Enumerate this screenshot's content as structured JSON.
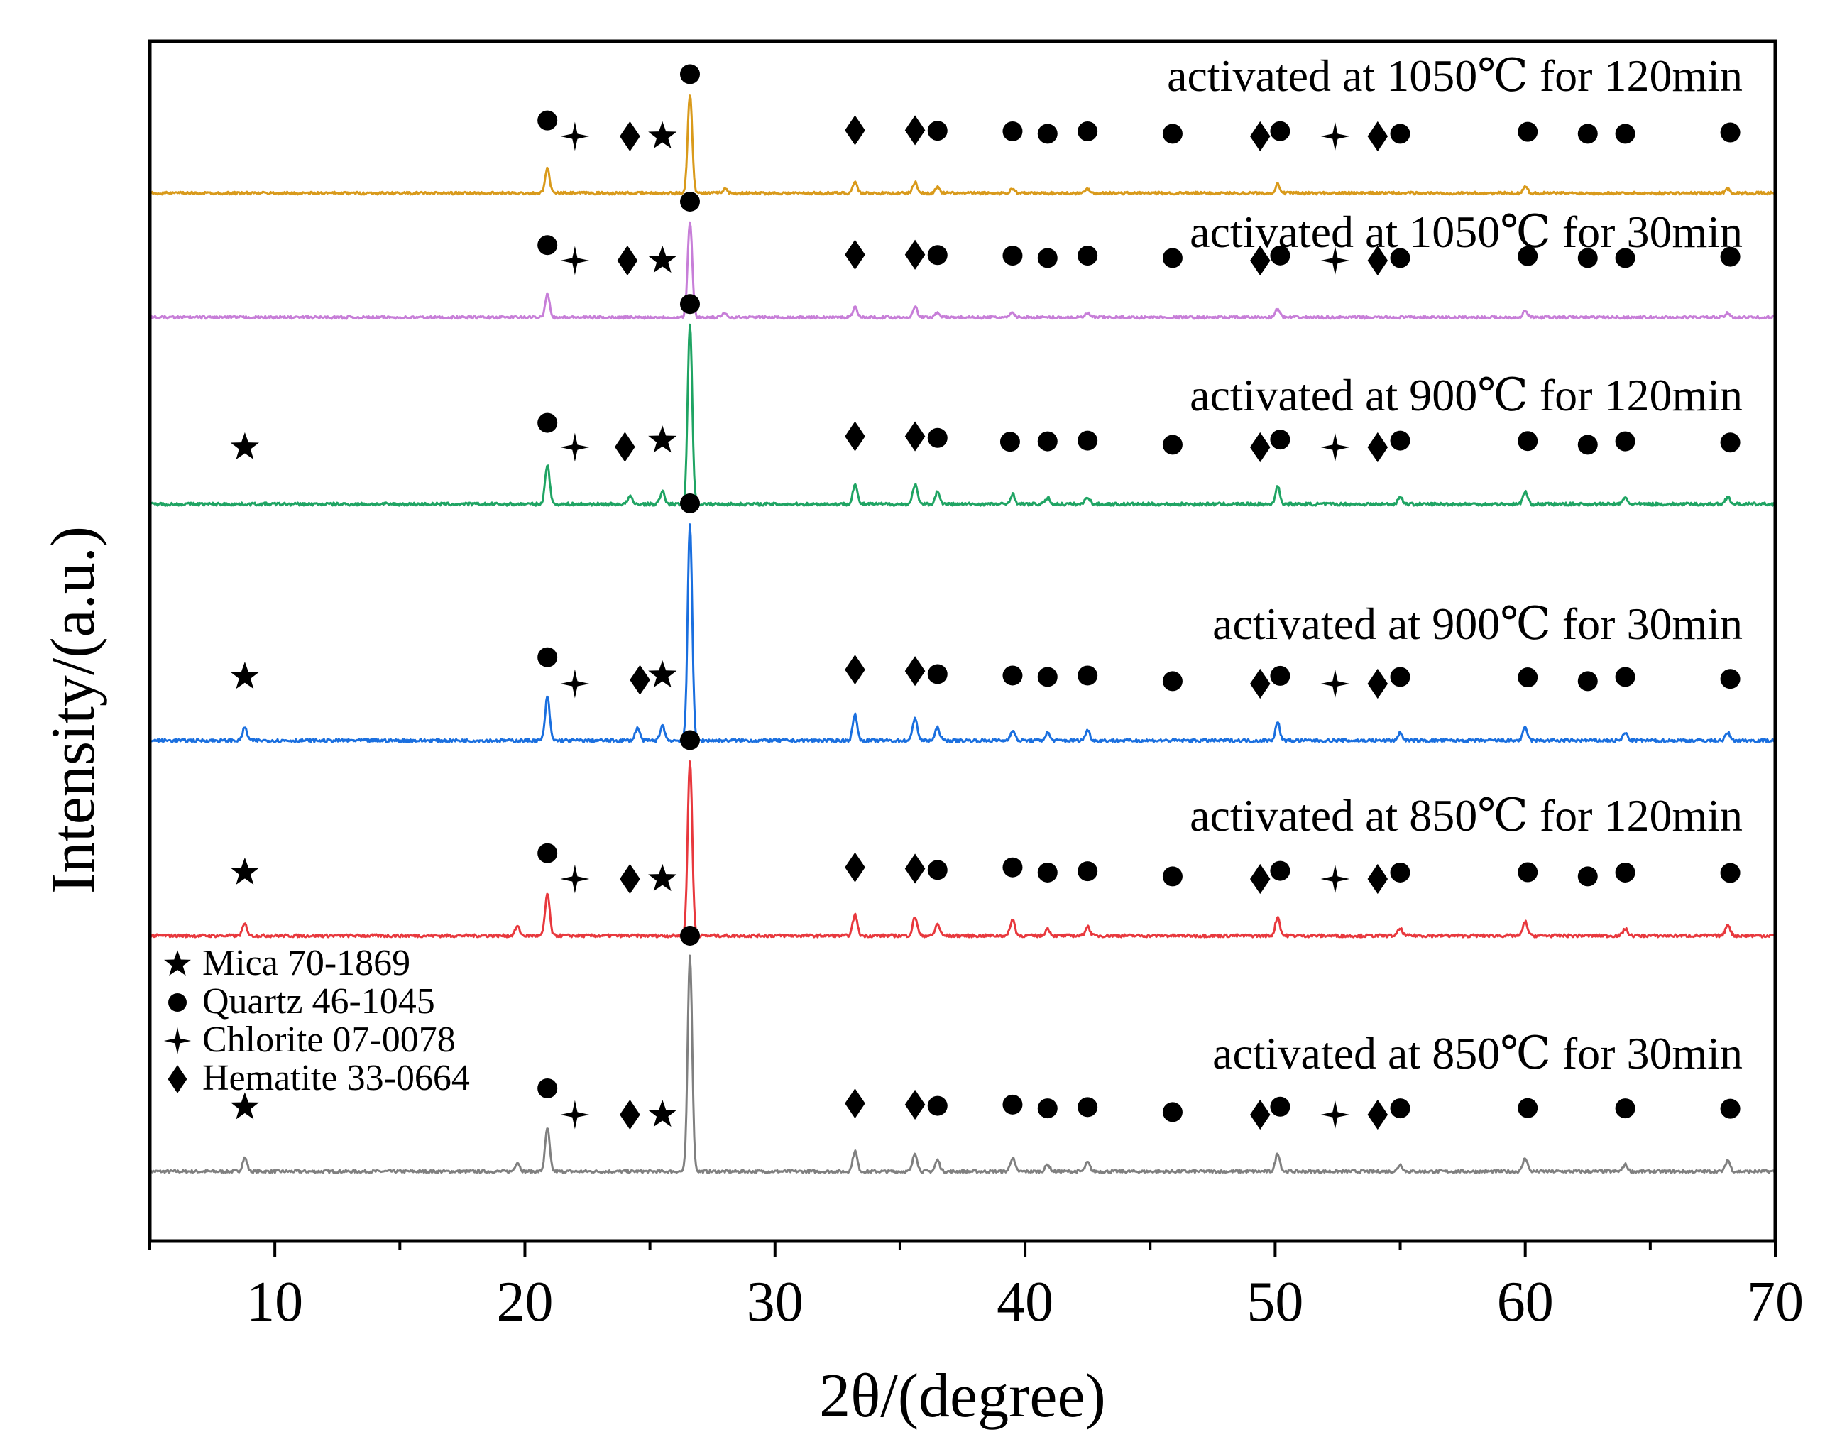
{
  "chart_data": {
    "type": "line",
    "xlabel": "2θ/(degree)",
    "ylabel": "Intensity/(a.u.)",
    "xlim": [
      5,
      70
    ],
    "x_ticks": [
      10,
      20,
      30,
      40,
      50,
      60,
      70
    ],
    "grid": false,
    "legend_position": "left",
    "legend": [
      {
        "symbol": "star",
        "label": "Mica 70-1869"
      },
      {
        "symbol": "circle",
        "label": "Quartz 46-1045"
      },
      {
        "symbol": "cross-star",
        "label": "Chlorite 07-0078"
      },
      {
        "symbol": "diamond",
        "label": "Hematite 33-0664"
      }
    ],
    "series": [
      {
        "name": "activated at 850℃ for 30min",
        "color": "#808080",
        "peaks": [
          [
            8.8,
            0.12
          ],
          [
            19.7,
            0.08
          ],
          [
            20.9,
            0.38
          ],
          [
            26.6,
            1.9
          ],
          [
            33.2,
            0.18
          ],
          [
            35.6,
            0.16
          ],
          [
            36.5,
            0.1
          ],
          [
            39.5,
            0.12
          ],
          [
            40.9,
            0.06
          ],
          [
            42.5,
            0.08
          ],
          [
            50.1,
            0.16
          ],
          [
            55.0,
            0.06
          ],
          [
            60.0,
            0.12
          ],
          [
            64.0,
            0.06
          ],
          [
            68.1,
            0.1
          ]
        ],
        "markers": [
          {
            "symbol": "star",
            "x": 8.8
          },
          {
            "symbol": "circle",
            "x": 20.9
          },
          {
            "symbol": "cross-star",
            "x": 22.0
          },
          {
            "symbol": "diamond",
            "x": 24.2
          },
          {
            "symbol": "star",
            "x": 25.5
          },
          {
            "symbol": "circle",
            "x": 26.6
          },
          {
            "symbol": "diamond",
            "x": 33.2
          },
          {
            "symbol": "diamond",
            "x": 35.6
          },
          {
            "symbol": "circle",
            "x": 36.5
          },
          {
            "symbol": "circle",
            "x": 39.5
          },
          {
            "symbol": "circle",
            "x": 40.9
          },
          {
            "symbol": "circle",
            "x": 42.5
          },
          {
            "symbol": "circle",
            "x": 45.9
          },
          {
            "symbol": "diamond",
            "x": 49.4
          },
          {
            "symbol": "circle",
            "x": 50.2
          },
          {
            "symbol": "cross-star",
            "x": 52.4
          },
          {
            "symbol": "diamond",
            "x": 54.1
          },
          {
            "symbol": "circle",
            "x": 55.0
          },
          {
            "symbol": "circle",
            "x": 60.1
          },
          {
            "symbol": "circle",
            "x": 64.0
          },
          {
            "symbol": "circle",
            "x": 68.2
          }
        ]
      },
      {
        "name": "activated at  850℃ for 120min",
        "color": "#e8383d",
        "peaks": [
          [
            8.8,
            0.1
          ],
          [
            19.7,
            0.08
          ],
          [
            20.9,
            0.36
          ],
          [
            26.6,
            1.5
          ],
          [
            33.2,
            0.18
          ],
          [
            35.6,
            0.16
          ],
          [
            36.5,
            0.1
          ],
          [
            39.5,
            0.14
          ],
          [
            40.9,
            0.06
          ],
          [
            42.5,
            0.08
          ],
          [
            50.1,
            0.16
          ],
          [
            55.0,
            0.06
          ],
          [
            60.0,
            0.12
          ],
          [
            64.0,
            0.06
          ],
          [
            68.1,
            0.1
          ]
        ],
        "markers": [
          {
            "symbol": "star",
            "x": 8.8
          },
          {
            "symbol": "circle",
            "x": 20.9
          },
          {
            "symbol": "cross-star",
            "x": 22.0
          },
          {
            "symbol": "diamond",
            "x": 24.2
          },
          {
            "symbol": "star",
            "x": 25.5
          },
          {
            "symbol": "circle",
            "x": 26.6
          },
          {
            "symbol": "diamond",
            "x": 33.2
          },
          {
            "symbol": "diamond",
            "x": 35.6
          },
          {
            "symbol": "circle",
            "x": 36.5
          },
          {
            "symbol": "circle",
            "x": 39.5
          },
          {
            "symbol": "circle",
            "x": 40.9
          },
          {
            "symbol": "circle",
            "x": 42.5
          },
          {
            "symbol": "circle",
            "x": 45.9
          },
          {
            "symbol": "diamond",
            "x": 49.4
          },
          {
            "symbol": "circle",
            "x": 50.2
          },
          {
            "symbol": "cross-star",
            "x": 52.4
          },
          {
            "symbol": "diamond",
            "x": 54.1
          },
          {
            "symbol": "circle",
            "x": 55.0
          },
          {
            "symbol": "circle",
            "x": 60.1
          },
          {
            "symbol": "circle",
            "x": 62.5
          },
          {
            "symbol": "circle",
            "x": 64.0
          },
          {
            "symbol": "circle",
            "x": 68.2
          }
        ]
      },
      {
        "name": "activated at  900℃ for 30min",
        "color": "#1a6fdf",
        "peaks": [
          [
            8.8,
            0.1
          ],
          [
            20.9,
            0.34
          ],
          [
            24.5,
            0.1
          ],
          [
            25.5,
            0.12
          ],
          [
            26.6,
            1.7
          ],
          [
            33.2,
            0.2
          ],
          [
            35.6,
            0.18
          ],
          [
            36.5,
            0.1
          ],
          [
            39.5,
            0.08
          ],
          [
            40.9,
            0.06
          ],
          [
            42.5,
            0.08
          ],
          [
            50.1,
            0.14
          ],
          [
            55.0,
            0.06
          ],
          [
            60.0,
            0.1
          ],
          [
            64.0,
            0.06
          ],
          [
            68.1,
            0.06
          ]
        ],
        "markers": [
          {
            "symbol": "star",
            "x": 8.8
          },
          {
            "symbol": "circle",
            "x": 20.9
          },
          {
            "symbol": "cross-star",
            "x": 22.0
          },
          {
            "symbol": "diamond",
            "x": 24.6
          },
          {
            "symbol": "star",
            "x": 25.5
          },
          {
            "symbol": "circle",
            "x": 26.6
          },
          {
            "symbol": "diamond",
            "x": 33.2
          },
          {
            "symbol": "diamond",
            "x": 35.6
          },
          {
            "symbol": "circle",
            "x": 36.5
          },
          {
            "symbol": "circle",
            "x": 39.5
          },
          {
            "symbol": "circle",
            "x": 40.9
          },
          {
            "symbol": "circle",
            "x": 42.5
          },
          {
            "symbol": "circle",
            "x": 45.9
          },
          {
            "symbol": "diamond",
            "x": 49.4
          },
          {
            "symbol": "circle",
            "x": 50.2
          },
          {
            "symbol": "cross-star",
            "x": 52.4
          },
          {
            "symbol": "diamond",
            "x": 54.1
          },
          {
            "symbol": "circle",
            "x": 55.0
          },
          {
            "symbol": "circle",
            "x": 60.1
          },
          {
            "symbol": "circle",
            "x": 62.5
          },
          {
            "symbol": "circle",
            "x": 64.0
          },
          {
            "symbol": "circle",
            "x": 68.2
          }
        ]
      },
      {
        "name": "activated at  900℃ for 120min",
        "color": "#1fa463",
        "peaks": [
          [
            20.9,
            0.32
          ],
          [
            24.2,
            0.06
          ],
          [
            25.5,
            0.1
          ],
          [
            26.6,
            1.45
          ],
          [
            33.2,
            0.16
          ],
          [
            35.6,
            0.16
          ],
          [
            36.5,
            0.1
          ],
          [
            39.5,
            0.08
          ],
          [
            40.9,
            0.05
          ],
          [
            42.5,
            0.06
          ],
          [
            50.1,
            0.14
          ],
          [
            55.0,
            0.06
          ],
          [
            60.0,
            0.1
          ],
          [
            64.0,
            0.05
          ],
          [
            68.1,
            0.06
          ]
        ],
        "markers": [
          {
            "symbol": "star",
            "x": 8.8
          },
          {
            "symbol": "circle",
            "x": 20.9
          },
          {
            "symbol": "cross-star",
            "x": 22.0
          },
          {
            "symbol": "diamond",
            "x": 24.0
          },
          {
            "symbol": "star",
            "x": 25.5
          },
          {
            "symbol": "circle",
            "x": 26.6
          },
          {
            "symbol": "diamond",
            "x": 33.2
          },
          {
            "symbol": "diamond",
            "x": 35.6
          },
          {
            "symbol": "circle",
            "x": 36.5
          },
          {
            "symbol": "circle",
            "x": 39.4
          },
          {
            "symbol": "circle",
            "x": 40.9
          },
          {
            "symbol": "circle",
            "x": 42.5
          },
          {
            "symbol": "circle",
            "x": 45.9
          },
          {
            "symbol": "diamond",
            "x": 49.4
          },
          {
            "symbol": "circle",
            "x": 50.2
          },
          {
            "symbol": "cross-star",
            "x": 52.4
          },
          {
            "symbol": "diamond",
            "x": 54.1
          },
          {
            "symbol": "circle",
            "x": 55.0
          },
          {
            "symbol": "circle",
            "x": 60.1
          },
          {
            "symbol": "circle",
            "x": 62.5
          },
          {
            "symbol": "circle",
            "x": 64.0
          },
          {
            "symbol": "circle",
            "x": 68.2
          }
        ]
      },
      {
        "name": "activated at  1050℃ for 30min",
        "color": "#c77ed8",
        "peaks": [
          [
            20.9,
            0.22
          ],
          [
            26.6,
            0.9
          ],
          [
            28.0,
            0.04
          ],
          [
            33.2,
            0.1
          ],
          [
            35.6,
            0.1
          ],
          [
            36.5,
            0.05
          ],
          [
            39.5,
            0.04
          ],
          [
            42.5,
            0.04
          ],
          [
            50.1,
            0.08
          ],
          [
            60.0,
            0.06
          ],
          [
            68.1,
            0.04
          ]
        ],
        "markers": [
          {
            "symbol": "circle",
            "x": 20.9
          },
          {
            "symbol": "cross-star",
            "x": 22.0
          },
          {
            "symbol": "diamond",
            "x": 24.1
          },
          {
            "symbol": "star",
            "x": 25.5
          },
          {
            "symbol": "circle",
            "x": 26.6
          },
          {
            "symbol": "diamond",
            "x": 33.2
          },
          {
            "symbol": "diamond",
            "x": 35.6
          },
          {
            "symbol": "circle",
            "x": 36.5
          },
          {
            "symbol": "circle",
            "x": 39.5
          },
          {
            "symbol": "circle",
            "x": 40.9
          },
          {
            "symbol": "circle",
            "x": 42.5
          },
          {
            "symbol": "circle",
            "x": 45.9
          },
          {
            "symbol": "diamond",
            "x": 49.4
          },
          {
            "symbol": "circle",
            "x": 50.2
          },
          {
            "symbol": "cross-star",
            "x": 52.4
          },
          {
            "symbol": "diamond",
            "x": 54.1
          },
          {
            "symbol": "circle",
            "x": 55.0
          },
          {
            "symbol": "circle",
            "x": 60.1
          },
          {
            "symbol": "circle",
            "x": 62.5
          },
          {
            "symbol": "circle",
            "x": 64.0
          },
          {
            "symbol": "circle",
            "x": 68.2
          }
        ]
      },
      {
        "name": "activated at  1050℃ for 120min",
        "color": "#d99a1b",
        "peaks": [
          [
            20.9,
            0.22
          ],
          [
            26.6,
            0.9
          ],
          [
            28.0,
            0.04
          ],
          [
            33.2,
            0.1
          ],
          [
            35.6,
            0.1
          ],
          [
            36.5,
            0.05
          ],
          [
            39.5,
            0.04
          ],
          [
            42.5,
            0.04
          ],
          [
            50.1,
            0.08
          ],
          [
            60.0,
            0.06
          ],
          [
            68.1,
            0.04
          ]
        ],
        "markers": [
          {
            "symbol": "circle",
            "x": 20.9
          },
          {
            "symbol": "cross-star",
            "x": 22.0
          },
          {
            "symbol": "diamond",
            "x": 24.2
          },
          {
            "symbol": "star",
            "x": 25.5
          },
          {
            "symbol": "circle",
            "x": 26.6
          },
          {
            "symbol": "diamond",
            "x": 33.2
          },
          {
            "symbol": "diamond",
            "x": 35.6
          },
          {
            "symbol": "circle",
            "x": 36.5
          },
          {
            "symbol": "circle",
            "x": 39.5
          },
          {
            "symbol": "circle",
            "x": 40.9
          },
          {
            "symbol": "circle",
            "x": 42.5
          },
          {
            "symbol": "circle",
            "x": 45.9
          },
          {
            "symbol": "diamond",
            "x": 49.4
          },
          {
            "symbol": "circle",
            "x": 50.2
          },
          {
            "symbol": "cross-star",
            "x": 52.4
          },
          {
            "symbol": "diamond",
            "x": 54.1
          },
          {
            "symbol": "circle",
            "x": 55.0
          },
          {
            "symbol": "circle",
            "x": 60.1
          },
          {
            "symbol": "circle",
            "x": 62.5
          },
          {
            "symbol": "circle",
            "x": 64.0
          },
          {
            "symbol": "circle",
            "x": 68.2
          }
        ]
      }
    ]
  }
}
